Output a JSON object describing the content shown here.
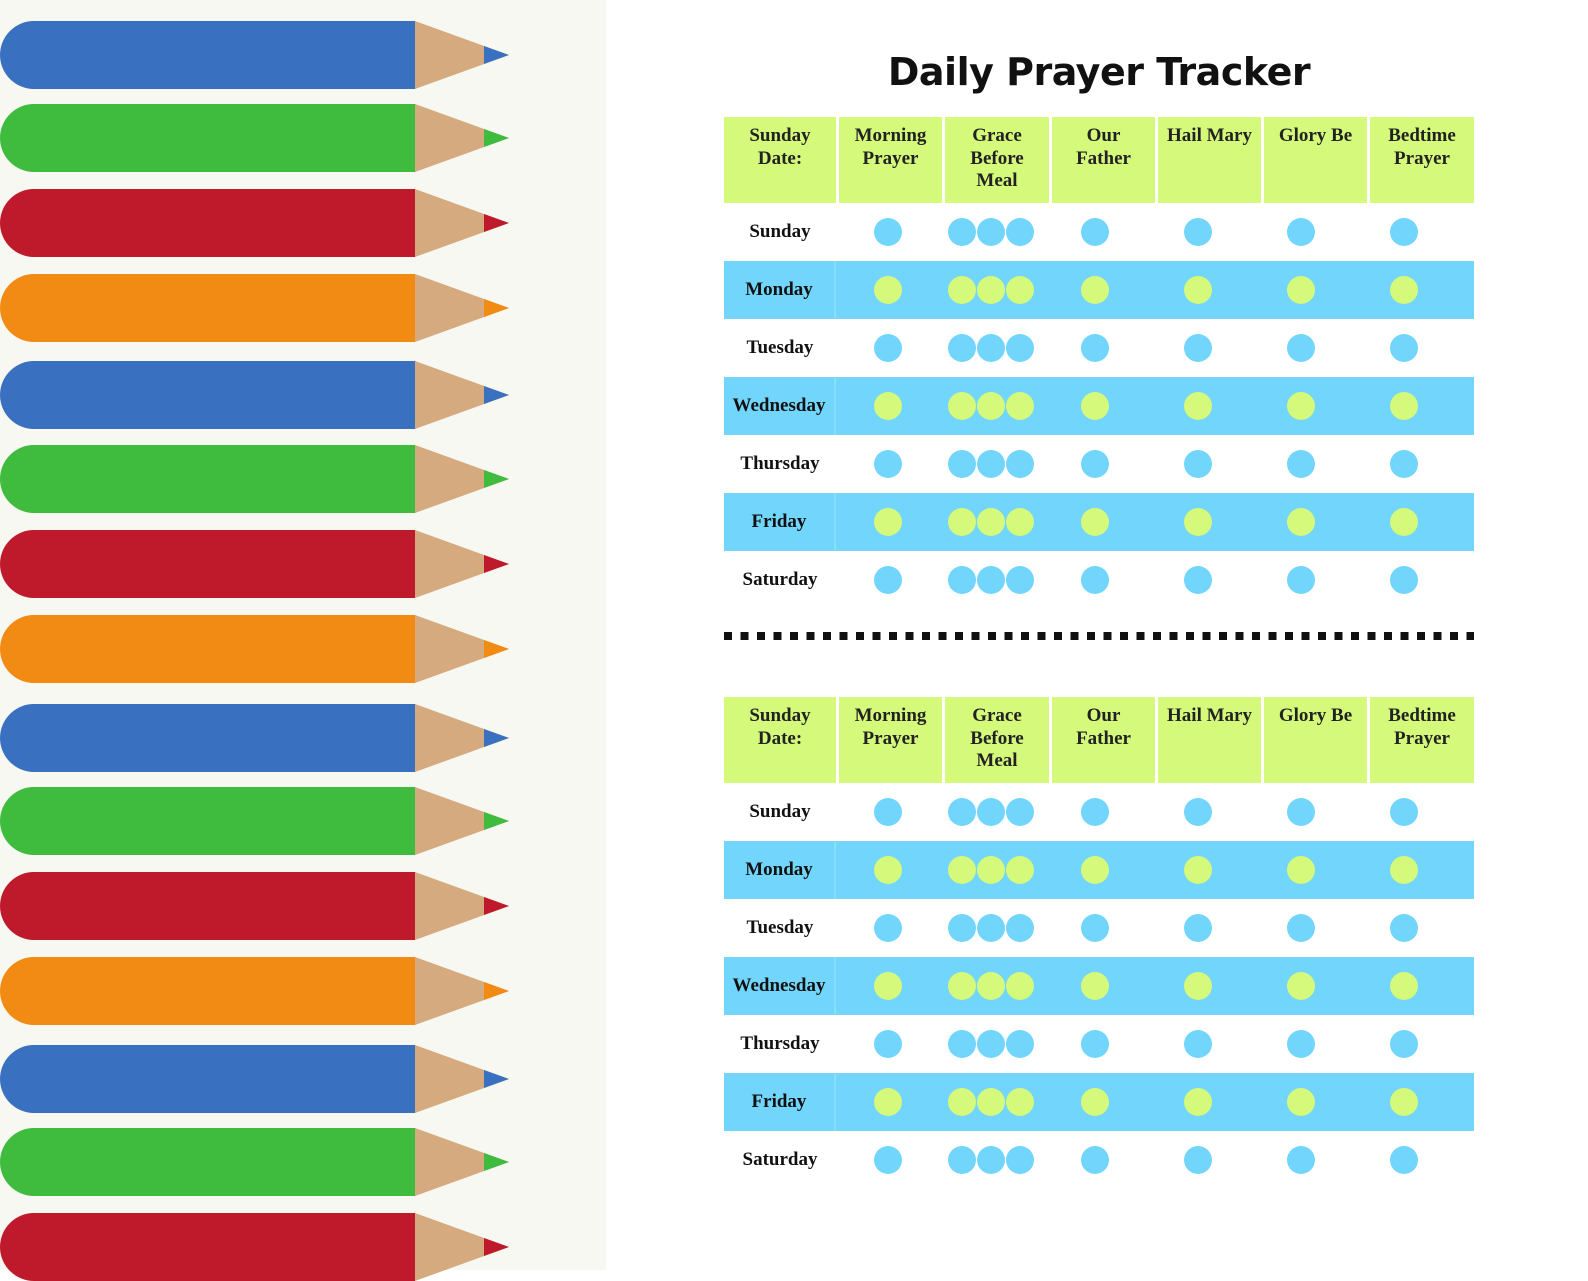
{
  "title": "Daily Prayer Tracker",
  "colors": {
    "header_bg": "#d5f97a",
    "shaded_row_bg": "#72d5fb",
    "pencil_blue": "#3a70c0",
    "pencil_green": "#3fbb3e",
    "pencil_red": "#be1a2c",
    "pencil_orange": "#f28b14",
    "pencil_wood": "#d5aa7f"
  },
  "pencils": [
    "blue",
    "green",
    "red",
    "orange",
    "blue",
    "green",
    "red",
    "orange",
    "blue",
    "green",
    "red",
    "orange",
    "blue",
    "green",
    "red"
  ],
  "headers": [
    "Sunday\nDate:",
    "Morning\nPrayer",
    "Grace\nBefore\nMeal",
    "Our\nFather",
    "Hail Mary",
    "Glory Be",
    "Bedtime\nPrayer"
  ],
  "days": [
    "Sunday",
    "Monday",
    "Tuesday",
    "Wednesday",
    "Thursday",
    "Friday",
    "Saturday"
  ],
  "dots_per_column": [
    1,
    3,
    1,
    1,
    1,
    1
  ]
}
